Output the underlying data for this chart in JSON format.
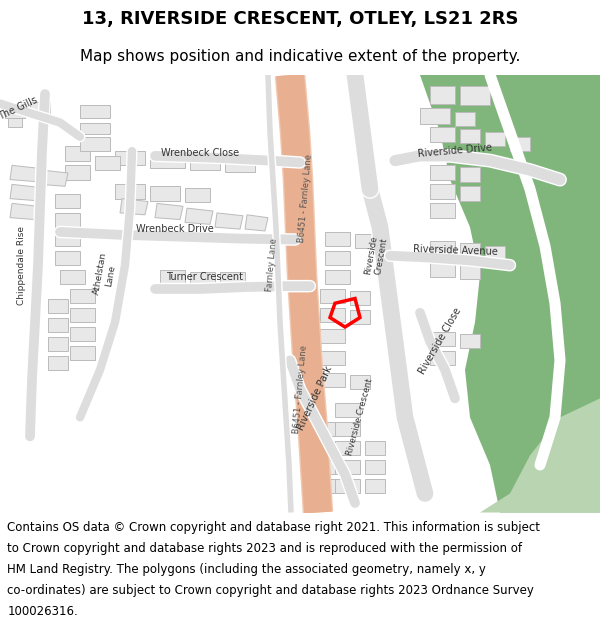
{
  "title": "13, RIVERSIDE CRESCENT, OTLEY, LS21 2RS",
  "subtitle": "Map shows position and indicative extent of the property.",
  "footer_lines": [
    "Contains OS data © Crown copyright and database right 2021. This information is subject",
    "to Crown copyright and database rights 2023 and is reproduced with the permission of",
    "HM Land Registry. The polygons (including the associated geometry, namely x, y",
    "co-ordinates) are subject to Crown copyright and database rights 2023 Ordnance Survey",
    "100026316."
  ],
  "map_bg": "#ffffff",
  "road_main_color": "#f0c8b0",
  "building_fill": "#e8e8e8",
  "building_edge": "#bbbbbb",
  "green_area": "#6aaa64",
  "green_light": "#b8d4b0",
  "plot_color": "#ff0000",
  "title_fontsize": 13,
  "subtitle_fontsize": 11,
  "footer_fontsize": 8.5
}
